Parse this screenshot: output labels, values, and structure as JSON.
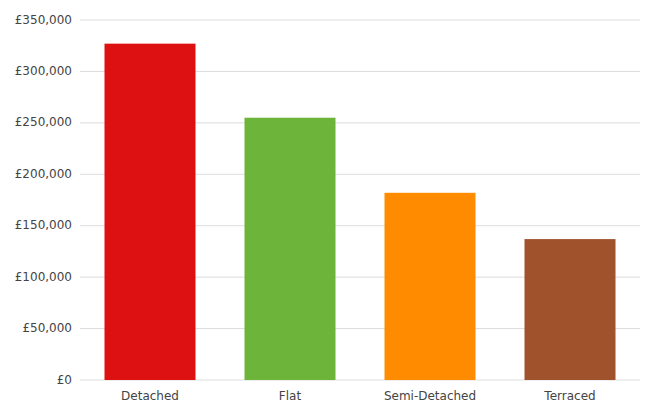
{
  "chart_data": {
    "type": "bar",
    "categories": [
      "Detached",
      "Flat",
      "Semi-Detached",
      "Terraced"
    ],
    "values": [
      327000,
      255000,
      182000,
      137000
    ],
    "colors": [
      "#dd1111",
      "#6db53a",
      "#ff8c00",
      "#a0522d"
    ],
    "ylim": [
      0,
      350000
    ],
    "yticks": [
      {
        "value": 0,
        "label": "£0"
      },
      {
        "value": 50000,
        "label": "£50,000"
      },
      {
        "value": 100000,
        "label": "£100,000"
      },
      {
        "value": 150000,
        "label": "£150,000"
      },
      {
        "value": 200000,
        "label": "£200,000"
      },
      {
        "value": 250000,
        "label": "£250,000"
      },
      {
        "value": 300000,
        "label": "£300,000"
      },
      {
        "value": 350000,
        "label": "£350,000"
      }
    ],
    "grid": true
  }
}
